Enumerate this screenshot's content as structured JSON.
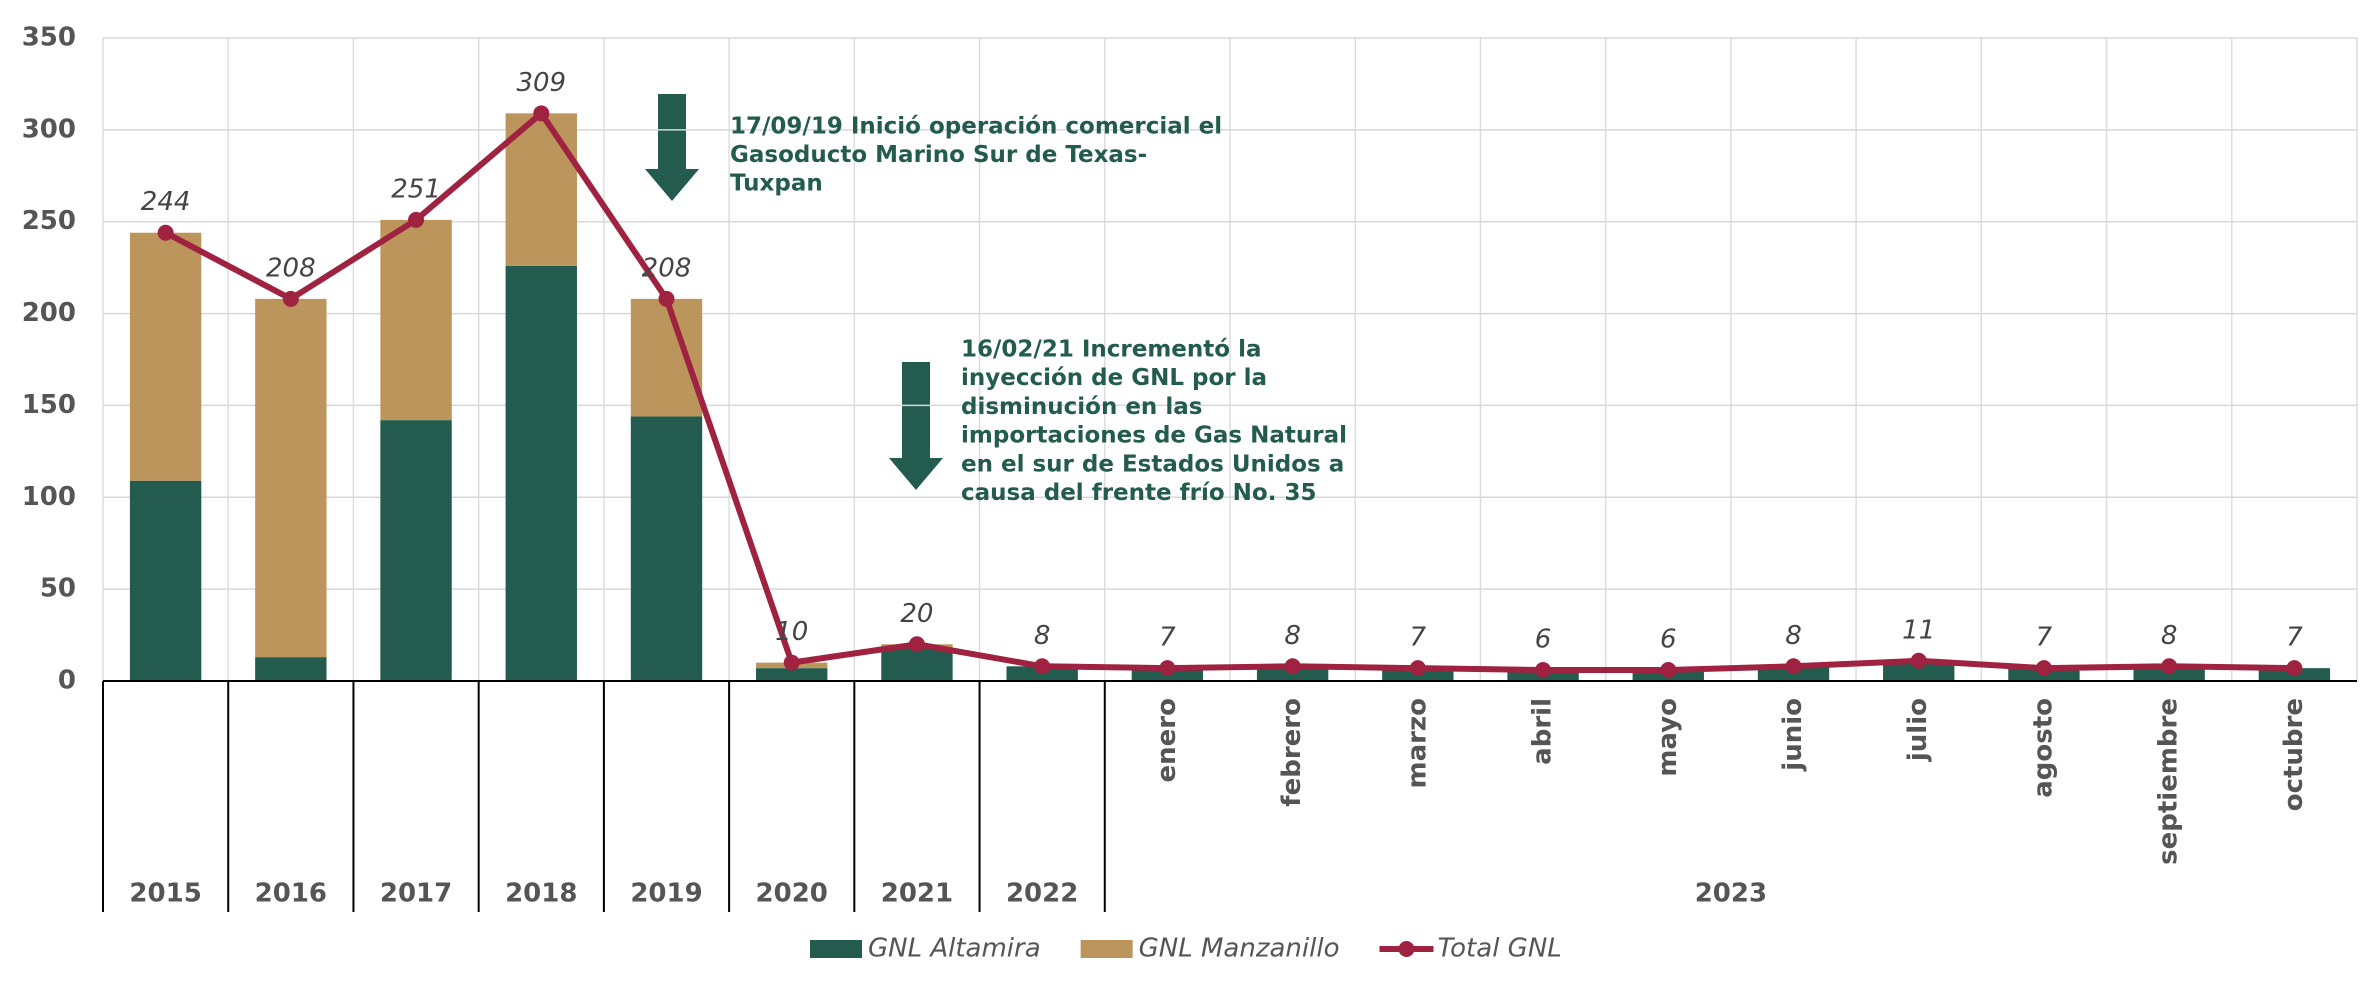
{
  "chart_data": {
    "type": "stacked-bar-line",
    "categories": [
      "2015",
      "2016",
      "2017",
      "2018",
      "2019",
      "2020",
      "2021",
      "2022",
      "enero",
      "febrero",
      "marzo",
      "abril",
      "mayo",
      "junio",
      "julio",
      "agosto",
      "septiembre",
      "octubre"
    ],
    "category_groups": [
      {
        "label": "2023",
        "span": 10
      }
    ],
    "series": [
      {
        "name": "GNL Altamira",
        "type": "bar",
        "color": "#235c4e",
        "values": [
          109,
          13,
          142,
          226,
          144,
          7,
          18,
          8,
          7,
          8,
          7,
          6,
          6,
          8,
          11,
          7,
          8,
          7
        ]
      },
      {
        "name": "GNL Manzanillo",
        "type": "bar",
        "color": "#bc955c",
        "values": [
          135,
          195,
          109,
          83,
          64,
          3,
          2,
          0,
          0,
          0,
          0,
          0,
          0,
          0,
          0,
          0,
          0,
          0
        ]
      },
      {
        "name": "Total GNL",
        "type": "line",
        "color": "#9f2241",
        "values": [
          244,
          208,
          251,
          309,
          208,
          10,
          20,
          8,
          7,
          8,
          7,
          6,
          6,
          8,
          11,
          7,
          8,
          7
        ]
      }
    ],
    "ylim": [
      0,
      350
    ],
    "yticks": [
      0,
      50,
      100,
      150,
      200,
      250,
      300,
      350
    ],
    "grid": true,
    "legend": "bottom",
    "annotations": [
      {
        "lines": [
          "17/09/19 Inició operación comercial el",
          "Gasoducto Marino Sur de Texas-",
          "Tuxpan"
        ]
      },
      {
        "lines": [
          "16/02/21 Incrementó la",
          "inyección de GNL por la",
          "disminución en las",
          "importaciones de Gas Natural",
          "en el sur de Estados Unidos a",
          "causa del frente frío No. 35"
        ]
      }
    ]
  }
}
